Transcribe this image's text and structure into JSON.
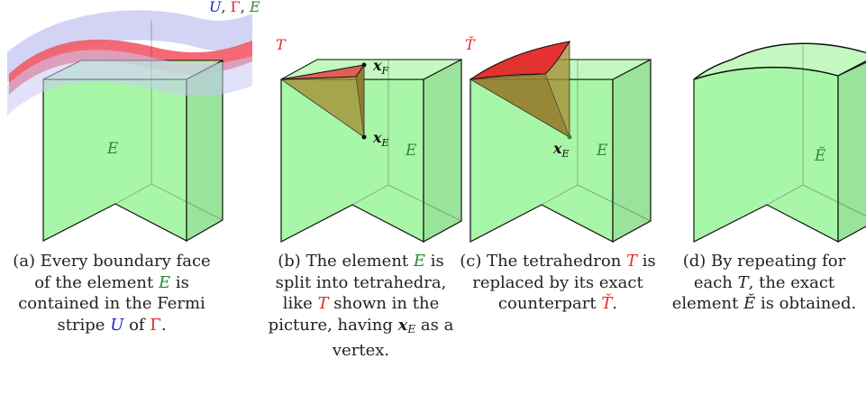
{
  "legend_top": {
    "U": "U",
    "sep1": ", ",
    "Gamma": "Γ",
    "sep2": ", ",
    "E": "E",
    "colors": {
      "U": "#2222cc",
      "Gamma": "#e8262b",
      "E": "#2e8b2e"
    }
  },
  "panels": {
    "a": {
      "element_label": "E",
      "caption": {
        "tag": "(a)",
        "p1": " Every boundary face of the element ",
        "E": "E",
        "p2": " is contained in the Fermi stripe ",
        "U": "U",
        "p3": " of ",
        "Gamma": "Γ",
        "p4": "."
      }
    },
    "b": {
      "T_label": "T",
      "xF_base": "x",
      "xF_sub": "F",
      "xE_base": "x",
      "xE_sub": "E",
      "element_label": "E",
      "caption": {
        "tag": "(b)",
        "p1": " The element ",
        "E": "E",
        "p2": " is split into tetrahedra, like ",
        "T": "T",
        "p3": " shown in the picture, having ",
        "x_base": "x",
        "x_sub": "E",
        "p4": " as a vertex."
      }
    },
    "c": {
      "T_label": "Ť",
      "xE_base": "x",
      "xE_sub": "E",
      "element_label": "E",
      "caption": {
        "tag": "(c)",
        "p1": " The tetrahedron ",
        "T": "T",
        "p2": " is replaced by its exact counterpart ",
        "Tcheck": "Ť",
        "p3": "."
      }
    },
    "d": {
      "element_label": "Ĕ",
      "caption": {
        "tag": "(d)",
        "p1": " By repeating for each ",
        "T": "T",
        "p2": ", the exact element ",
        "Ebreve": "Ĕ",
        "p3": " is obtained."
      }
    }
  },
  "colors": {
    "element_fill": "#99f599",
    "element_top": "#b9f8b5",
    "stripe_blue": "#c8c8f4",
    "stripe_red": "#f25a66",
    "tetra_fill": "#a48a30",
    "tetra_face": "#e6565a"
  }
}
